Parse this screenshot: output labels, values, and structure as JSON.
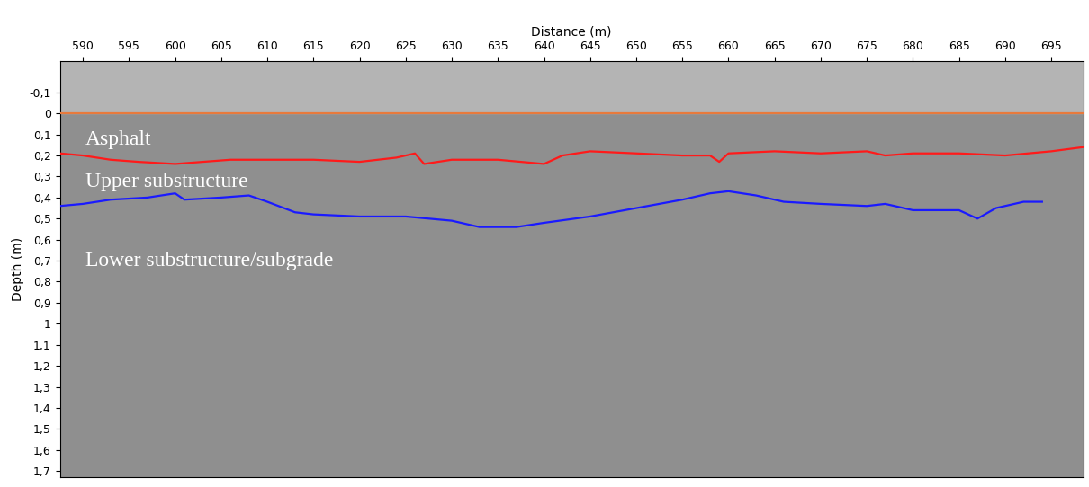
{
  "chart_data": {
    "type": "line",
    "x_label": "Distance (m)",
    "y_label": "Depth (m)",
    "xlim": [
      587.5,
      698.5
    ],
    "ylim": [
      1.73,
      -0.25
    ],
    "xticks": [
      590,
      595,
      600,
      605,
      610,
      615,
      620,
      625,
      630,
      635,
      640,
      645,
      650,
      655,
      660,
      665,
      670,
      675,
      680,
      685,
      690,
      695
    ],
    "yticks": [
      {
        "value": -0.1,
        "label": "-0,1"
      },
      0,
      {
        "value": 0.1,
        "label": "0,1"
      },
      {
        "value": 0.2,
        "label": "0,2"
      },
      {
        "value": 0.3,
        "label": "0,3"
      },
      {
        "value": 0.4,
        "label": "0,4"
      },
      {
        "value": 0.5,
        "label": "0,5"
      },
      {
        "value": 0.6,
        "label": "0,6"
      },
      {
        "value": 0.7,
        "label": "0,7"
      },
      {
        "value": 0.8,
        "label": "0,8"
      },
      {
        "value": 0.9,
        "label": "0,9"
      },
      1,
      {
        "value": 1.1,
        "label": "1,1"
      },
      {
        "value": 1.2,
        "label": "1,2"
      },
      {
        "value": 1.3,
        "label": "1,3"
      },
      {
        "value": 1.4,
        "label": "1,4"
      },
      {
        "value": 1.5,
        "label": "1,5"
      },
      {
        "value": 1.6,
        "label": "1,6"
      },
      {
        "value": 1.7,
        "label": "1,7"
      }
    ],
    "grid": false,
    "annotations": [
      "Asphalt",
      "Upper substructure",
      "Lower substructure/subgrade"
    ],
    "series": [
      {
        "color": "#e87a3c",
        "x": [
          587.5,
          698.5
        ],
        "values": [
          0,
          0
        ]
      },
      {
        "color": "#ff1a1a",
        "x": [
          587.5,
          590,
          593,
          596,
          600,
          603,
          606,
          610,
          615,
          620,
          624,
          626,
          627,
          630,
          635,
          640,
          642,
          645,
          650,
          655,
          658,
          659,
          660,
          665,
          670,
          675,
          677,
          680,
          685,
          690,
          695,
          698.5
        ],
        "values": [
          0.19,
          0.2,
          0.22,
          0.23,
          0.24,
          0.23,
          0.22,
          0.22,
          0.22,
          0.23,
          0.21,
          0.19,
          0.24,
          0.22,
          0.22,
          0.24,
          0.2,
          0.18,
          0.19,
          0.2,
          0.2,
          0.23,
          0.19,
          0.18,
          0.19,
          0.18,
          0.2,
          0.19,
          0.19,
          0.2,
          0.18,
          0.16
        ]
      },
      {
        "color": "#1a1aff",
        "x": [
          587.5,
          590,
          593,
          597,
          600,
          601,
          605,
          608,
          610,
          613,
          615,
          620,
          625,
          630,
          633,
          637,
          640,
          645,
          650,
          655,
          658,
          660,
          663,
          666,
          670,
          675,
          677,
          680,
          685,
          687,
          689,
          692,
          694
        ],
        "values": [
          0.44,
          0.43,
          0.41,
          0.4,
          0.38,
          0.41,
          0.4,
          0.39,
          0.42,
          0.47,
          0.48,
          0.49,
          0.49,
          0.51,
          0.54,
          0.54,
          0.52,
          0.49,
          0.45,
          0.41,
          0.38,
          0.37,
          0.39,
          0.42,
          0.43,
          0.44,
          0.43,
          0.46,
          0.46,
          0.5,
          0.45,
          0.42,
          0.42
        ]
      }
    ]
  }
}
